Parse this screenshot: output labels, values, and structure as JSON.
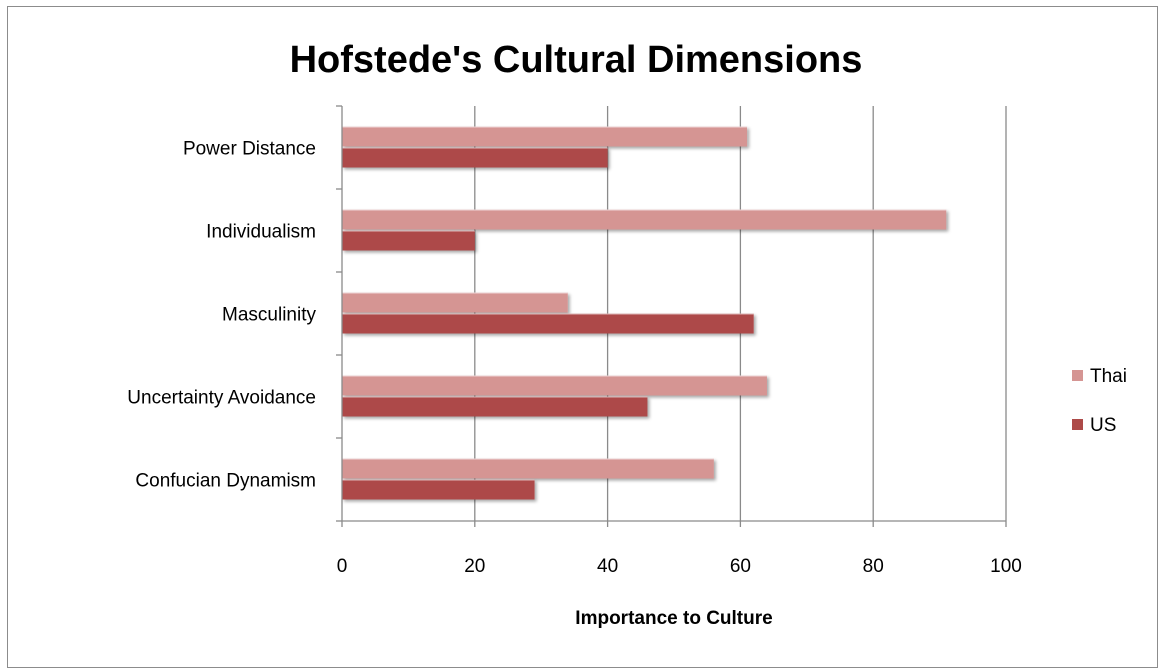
{
  "chart_data": {
    "type": "bar",
    "orientation": "horizontal",
    "title": "Hofstede's Cultural Dimensions",
    "xlabel": "Importance to Culture",
    "ylabel": "",
    "categories": [
      "Power Distance",
      "Individualism",
      "Masculinity",
      "Uncertainty Avoidance",
      "Confucian Dynamism"
    ],
    "series": [
      {
        "name": "Thai",
        "color": "#d59593",
        "values": [
          61,
          91,
          34,
          64,
          56
        ]
      },
      {
        "name": "US",
        "color": "#ad4a48",
        "values": [
          40,
          20,
          62,
          46,
          29
        ]
      }
    ],
    "xlim": [
      0,
      100
    ],
    "xticks": [
      "0",
      "20",
      "40",
      "60",
      "80",
      "100"
    ],
    "grid": "vertical major gridlines",
    "legend_position": "right"
  }
}
